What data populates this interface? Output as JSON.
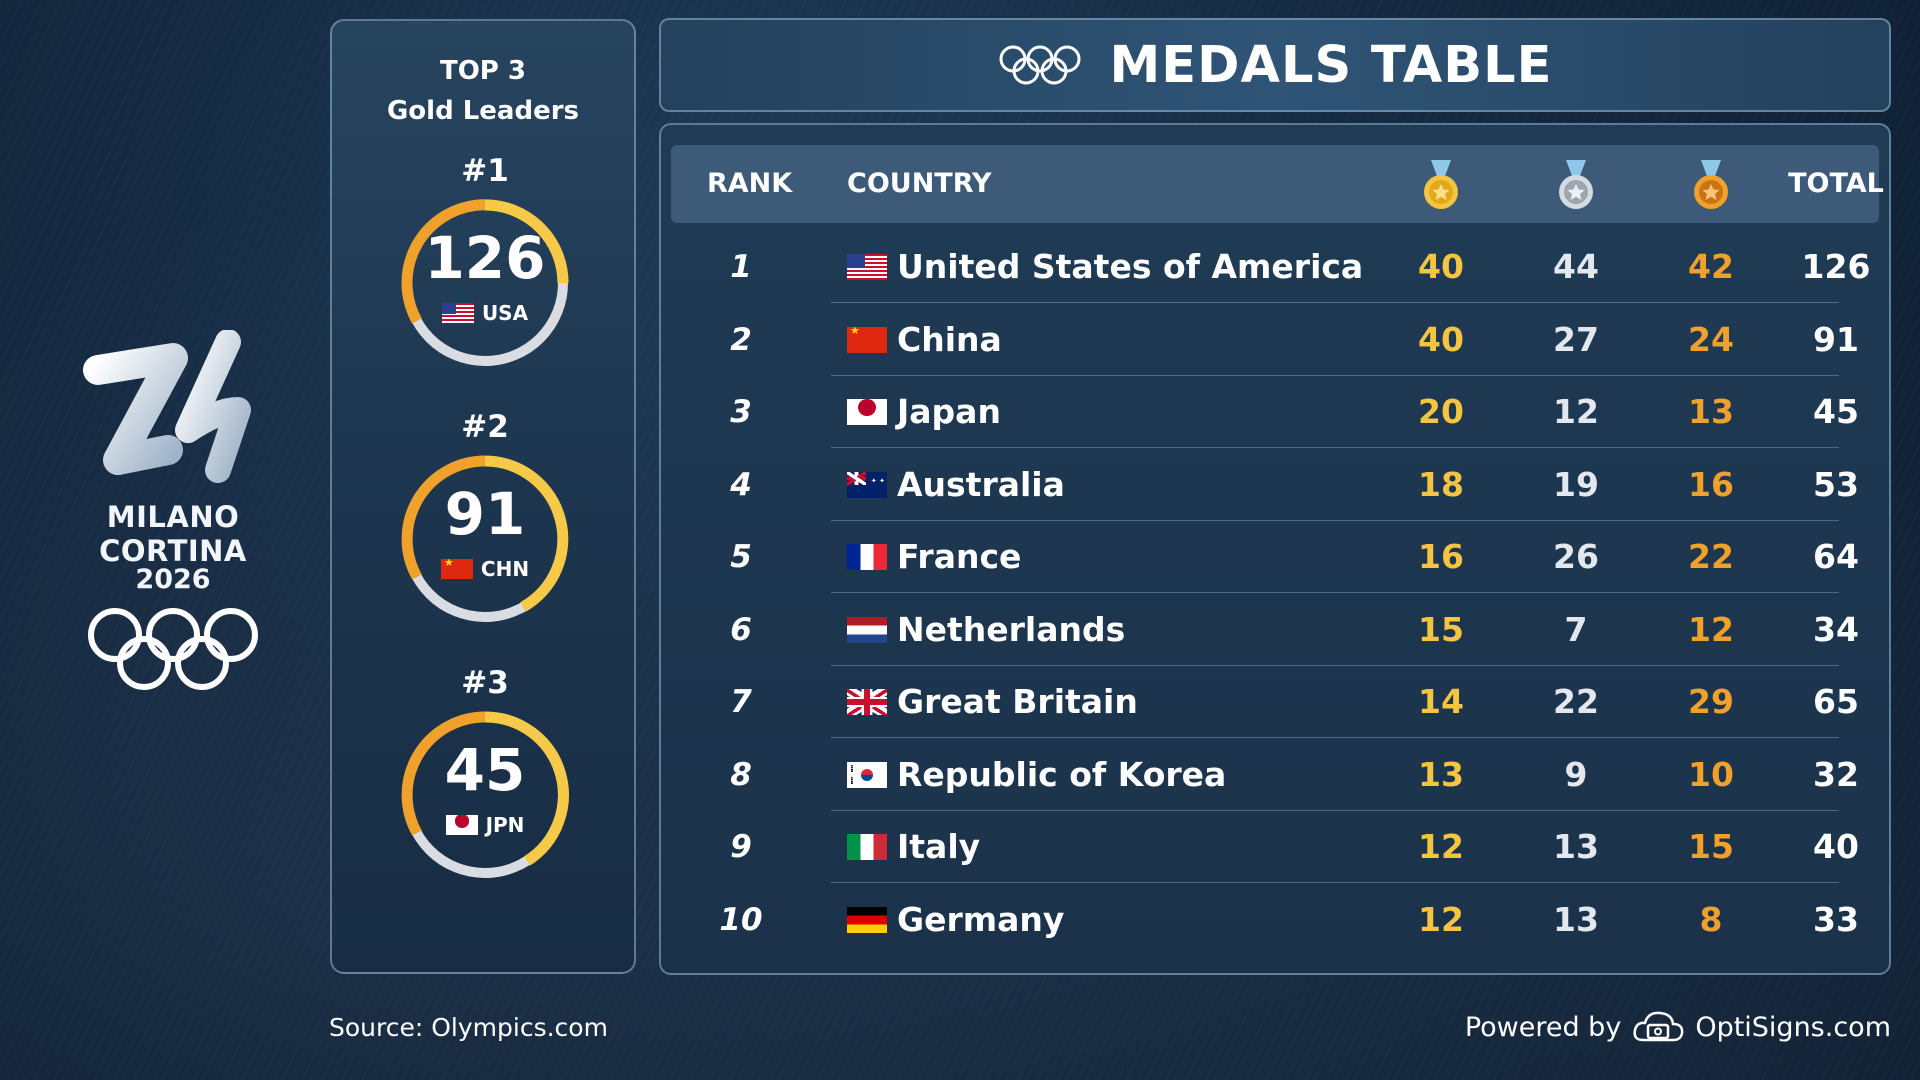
{
  "logo": {
    "name": "MILANO CORTINA",
    "year": "2026"
  },
  "top3": {
    "heading_line1": "TOP 3",
    "heading_line2": "Gold Leaders",
    "leaders": [
      {
        "rank": "#1",
        "total": "126",
        "code": "USA",
        "flag": "usa"
      },
      {
        "rank": "#2",
        "total": "91",
        "code": "CHN",
        "flag": "chn"
      },
      {
        "rank": "#3",
        "total": "45",
        "code": "JPN",
        "flag": "jpn"
      }
    ]
  },
  "banner": {
    "title": "MEDALS TABLE",
    "icon": "olympic-rings-icon"
  },
  "table": {
    "headers": {
      "rank": "RANK",
      "country": "COUNTRY",
      "gold_icon": "gold-medal-icon",
      "silver_icon": "silver-medal-icon",
      "bronze_icon": "bronze-medal-icon",
      "total": "TOTAL"
    },
    "rows": [
      {
        "rank": "1",
        "country": "United States of America",
        "flag": "usa",
        "gold": "40",
        "silver": "44",
        "bronze": "42",
        "total": "126"
      },
      {
        "rank": "2",
        "country": "China",
        "flag": "chn",
        "gold": "40",
        "silver": "27",
        "bronze": "24",
        "total": "91"
      },
      {
        "rank": "3",
        "country": "Japan",
        "flag": "jpn",
        "gold": "20",
        "silver": "12",
        "bronze": "13",
        "total": "45"
      },
      {
        "rank": "4",
        "country": "Australia",
        "flag": "aus",
        "gold": "18",
        "silver": "19",
        "bronze": "16",
        "total": "53"
      },
      {
        "rank": "5",
        "country": "France",
        "flag": "fra",
        "gold": "16",
        "silver": "26",
        "bronze": "22",
        "total": "64"
      },
      {
        "rank": "6",
        "country": "Netherlands",
        "flag": "ned",
        "gold": "15",
        "silver": "7",
        "bronze": "12",
        "total": "34"
      },
      {
        "rank": "7",
        "country": "Great Britain",
        "flag": "gbr",
        "gold": "14",
        "silver": "22",
        "bronze": "29",
        "total": "65"
      },
      {
        "rank": "8",
        "country": "Republic of Korea",
        "flag": "kor",
        "gold": "13",
        "silver": "9",
        "bronze": "10",
        "total": "32"
      },
      {
        "rank": "9",
        "country": "Italy",
        "flag": "ita",
        "gold": "12",
        "silver": "13",
        "bronze": "15",
        "total": "40"
      },
      {
        "rank": "10",
        "country": "Germany",
        "flag": "ger",
        "gold": "12",
        "silver": "13",
        "bronze": "8",
        "total": "33"
      }
    ]
  },
  "footer": {
    "source": "Source: Olympics.com",
    "powered_by": "Powered by",
    "brand": "OptiSigns.com"
  },
  "colors": {
    "gold": "#f5c542",
    "silver": "#e4e8ee",
    "bronze": "#f0a12b",
    "ring_track": "#d9dde3"
  }
}
